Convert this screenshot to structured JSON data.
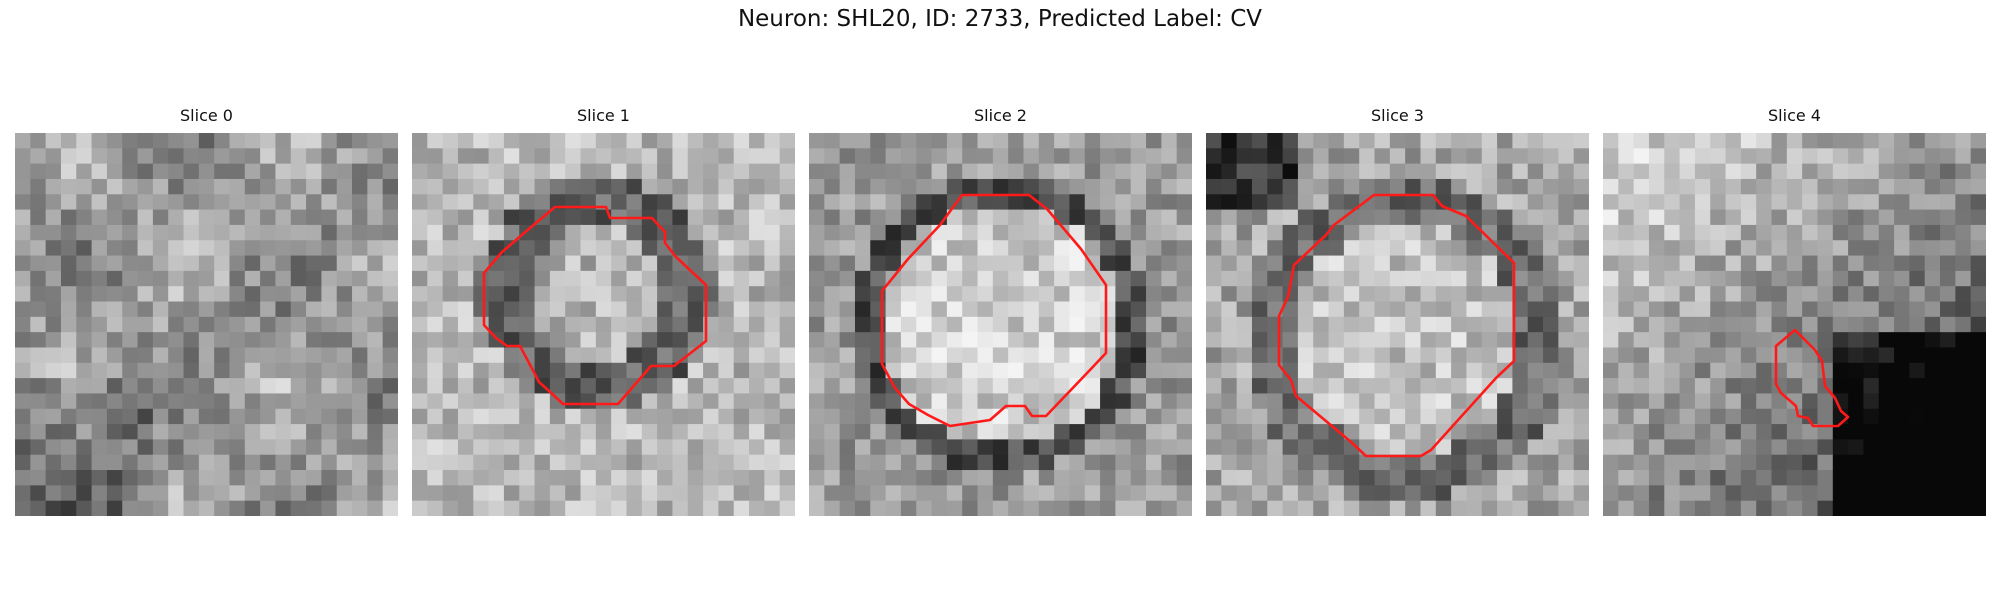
{
  "figure": {
    "title": "Neuron: SHL20, ID: 2733, Predicted Label: CV"
  },
  "panels": [
    {
      "title": "Slice 0",
      "has_contour": false
    },
    {
      "title": "Slice 1",
      "has_contour": true
    },
    {
      "title": "Slice 2",
      "has_contour": true
    },
    {
      "title": "Slice 3",
      "has_contour": true
    },
    {
      "title": "Slice 4",
      "has_contour": true
    }
  ],
  "colors": {
    "background": "#ffffff",
    "contour": "#ff1a1a",
    "colormap": "grayscale"
  }
}
